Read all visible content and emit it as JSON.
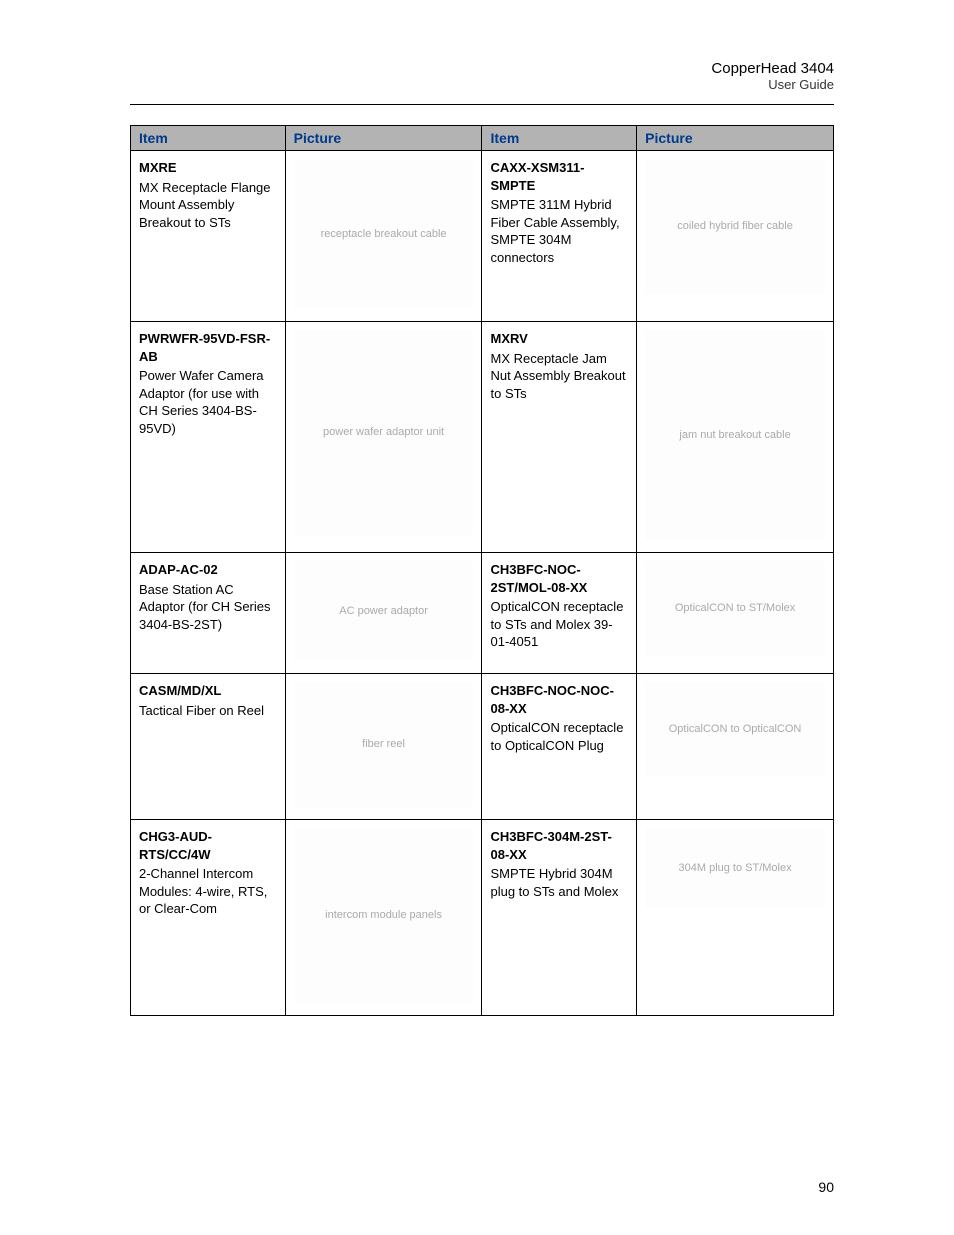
{
  "header": {
    "title": "CopperHead 3404",
    "subtitle": "User Guide"
  },
  "table": {
    "columns": [
      "Item",
      "Picture",
      "Item",
      "Picture"
    ],
    "rows": [
      {
        "left": {
          "part": "MXRE",
          "desc": "MX Receptacle Flange Mount Assembly Breakout to STs",
          "img_alt": "receptacle breakout cable"
        },
        "right": {
          "part": "CAXX-XSM311-SMPTE",
          "desc": "SMPTE 311M Hybrid Fiber Cable Assembly, SMPTE 304M connectors",
          "img_alt": "coiled hybrid fiber cable"
        }
      },
      {
        "left": {
          "part": "PWRWFR-95VD-FSR-AB",
          "desc": "Power Wafer Camera Adaptor (for use with CH Series 3404-BS-95VD)",
          "img_alt": "power wafer adaptor unit"
        },
        "right": {
          "part": "MXRV",
          "desc": "MX Receptacle Jam Nut Assembly Breakout to STs",
          "img_alt": "jam nut breakout cable"
        }
      },
      {
        "left": {
          "part": "ADAP-AC-02",
          "desc": "Base Station AC Adaptor (for CH Series 3404-BS-2ST)",
          "img_alt": "AC power adaptor"
        },
        "right": {
          "part": "CH3BFC-NOC-2ST/MOL-08-XX",
          "desc": "OpticalCON receptacle to STs and Molex 39-01-4051",
          "img_alt": "OpticalCON to ST/Molex"
        }
      },
      {
        "left": {
          "part": "CASM/MD/XL",
          "desc": "Tactical Fiber on Reel",
          "img_alt": "fiber reel"
        },
        "right": {
          "part": "CH3BFC-NOC-NOC-08-XX",
          "desc": "OpticalCON receptacle to OpticalCON Plug",
          "img_alt": "OpticalCON to OpticalCON"
        }
      },
      {
        "left": {
          "part": "CHG3-AUD-RTS/CC/4W",
          "desc": "2-Channel Intercom Modules: 4-wire, RTS, or Clear-Com",
          "img_alt": "intercom module panels"
        },
        "right": {
          "part": "CH3BFC-304M-2ST-08-XX",
          "desc": "SMPTE Hybrid 304M plug to STs and Molex",
          "img_alt": "304M plug to ST/Molex"
        }
      }
    ],
    "styling": {
      "header_bg": "#b3b3b3",
      "header_fg": "#003a8c",
      "border_color": "#000000",
      "font_size_body": 13,
      "font_size_header": 14
    }
  },
  "page_number": "90"
}
